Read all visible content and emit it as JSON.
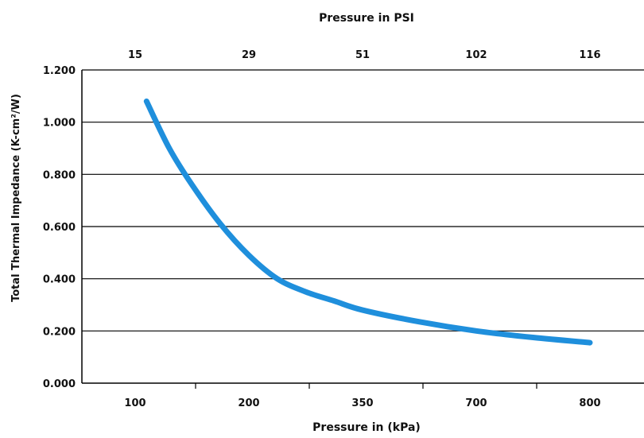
{
  "chart_data": {
    "type": "line",
    "top_axis_title": "Pressure in PSI",
    "top_tick_labels": [
      "15",
      "29",
      "51",
      "102",
      "116"
    ],
    "xlabel": "Pressure in (kPa)",
    "x_tick_labels": [
      "100",
      "200",
      "350",
      "700",
      "800"
    ],
    "ylabel": "Total Thermal Impedance (K-cm²/W)",
    "y_ticks": [
      "0.000",
      "0.200",
      "0.400",
      "0.600",
      "0.800",
      "1.000",
      "1.200"
    ],
    "ylim": [
      0,
      1.2
    ],
    "grid": "horizontal",
    "series_color": "#1f8fdc",
    "series": [
      {
        "x_position": [
          0.1,
          0.3,
          0.5,
          0.75,
          1.0,
          1.25,
          1.5,
          1.75,
          2.0,
          2.5,
          3.0,
          3.5,
          4.0
        ],
        "values": [
          1.08,
          0.9,
          0.76,
          0.61,
          0.49,
          0.4,
          0.35,
          0.315,
          0.28,
          0.235,
          0.2,
          0.175,
          0.155
        ]
      }
    ]
  }
}
